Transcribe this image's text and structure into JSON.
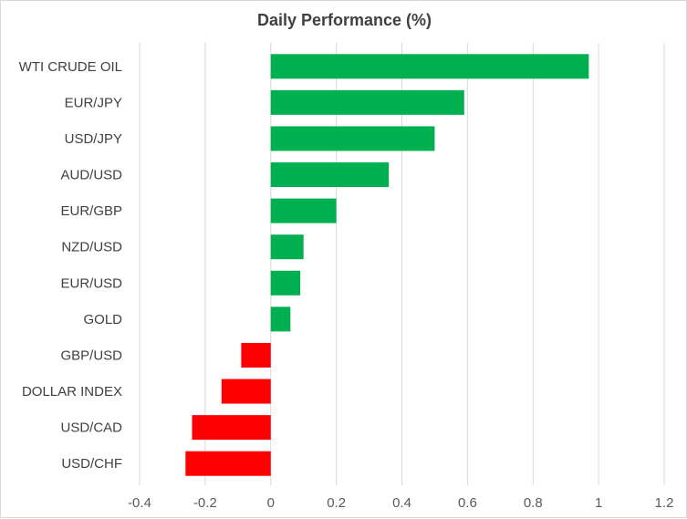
{
  "chart_data": {
    "type": "bar",
    "orientation": "horizontal",
    "title": "Daily Performance  (%)",
    "categories": [
      "WTI CRUDE OIL",
      "EUR/JPY",
      "USD/JPY",
      "AUD/USD",
      "EUR/GBP",
      "NZD/USD",
      "EUR/USD",
      "GOLD",
      "GBP/USD",
      "DOLLAR INDEX",
      "USD/CAD",
      "USD/CHF"
    ],
    "values": [
      0.97,
      0.59,
      0.5,
      0.36,
      0.2,
      0.1,
      0.09,
      0.06,
      -0.09,
      -0.15,
      -0.24,
      -0.26
    ],
    "xlim": [
      -0.4,
      1.2
    ],
    "xticks": [
      -0.4,
      -0.2,
      0,
      0.2,
      0.4,
      0.6,
      0.8,
      1,
      1.2
    ],
    "grid": true,
    "legend": "none",
    "colors": {
      "positive": "#00b050",
      "negative": "#ff0000",
      "grid": "#d9d9d9"
    }
  }
}
